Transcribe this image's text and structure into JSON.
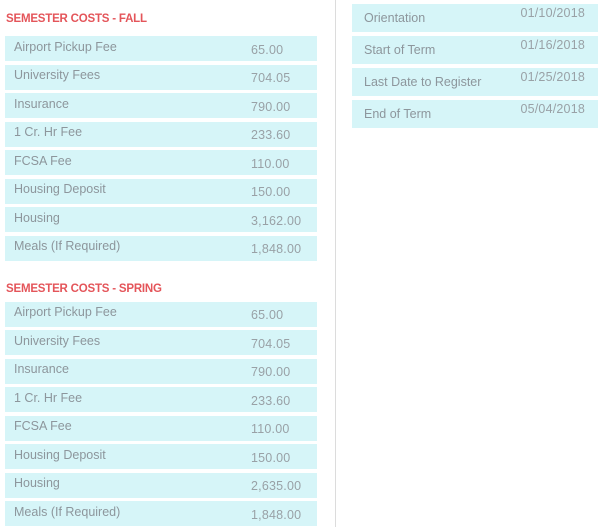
{
  "theme": {
    "page_bg": "#ffffff",
    "row_bg": "#d6f5f8",
    "title_color": "#e4555a",
    "label_color": "#8d969c",
    "value_color": "#99a1a6",
    "divider_color": "#dcdcdc"
  },
  "semester_costs_fall": {
    "title": "SEMESTER COSTS - FALL",
    "rows": [
      {
        "label": "Airport Pickup Fee",
        "value": "65.00"
      },
      {
        "label": "University Fees",
        "value": "704.05"
      },
      {
        "label": "Insurance",
        "value": "790.00"
      },
      {
        "label": "1 Cr. Hr Fee",
        "value": "233.60"
      },
      {
        "label": "FCSA Fee",
        "value": "110.00"
      },
      {
        "label": "Housing Deposit",
        "value": "150.00"
      },
      {
        "label": "Housing",
        "value": "3,162.00"
      },
      {
        "label": "Meals (If Required)",
        "value": "1,848.00"
      }
    ]
  },
  "semester_costs_spring": {
    "title": "SEMESTER COSTS - SPRING",
    "rows": [
      {
        "label": "Airport Pickup Fee",
        "value": "65.00"
      },
      {
        "label": "University Fees",
        "value": "704.05"
      },
      {
        "label": "Insurance",
        "value": "790.00"
      },
      {
        "label": "1 Cr. Hr Fee",
        "value": "233.60"
      },
      {
        "label": "FCSA Fee",
        "value": "110.00"
      },
      {
        "label": "Housing Deposit",
        "value": "150.00"
      },
      {
        "label": "Housing",
        "value": "2,635.00"
      },
      {
        "label": "Meals (If Required)",
        "value": "1,848.00"
      }
    ]
  },
  "term_dates": {
    "rows": [
      {
        "label": "Orientation",
        "value": "01/10/2018"
      },
      {
        "label": "Start of Term",
        "value": "01/16/2018"
      },
      {
        "label": "Last Date to Register",
        "value": "01/25/2018"
      },
      {
        "label": "End of Term",
        "value": "05/04/2018"
      }
    ]
  }
}
